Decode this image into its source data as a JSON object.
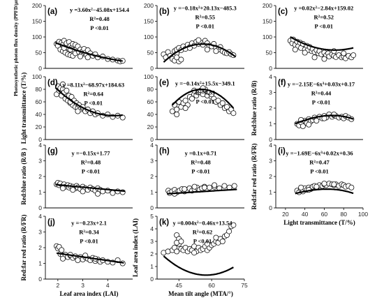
{
  "chart_data": [
    {
      "id": "a",
      "type": "scatter",
      "panel_label": "(a)",
      "equation": "y =3.60x²−45.08x+154.4",
      "r2": "R²=0.48",
      "p": "P <0.01",
      "xlim": [
        1.5,
        5
      ],
      "ylim": [
        0,
        200
      ],
      "x_ticks": [],
      "y_ticks": [
        0,
        50,
        100,
        150,
        200
      ],
      "ylabel": "Photosynthetic photon flux density (PPFD/μmolm⁻²s⁻¹)",
      "xlabel": "",
      "fit": {
        "kind": "poly",
        "coef": [
          154.4,
          -45.08,
          3.6
        ],
        "x_range": [
          1.9,
          4.6
        ]
      },
      "x": [
        1.95,
        2.0,
        2.05,
        2.1,
        2.15,
        2.2,
        2.2,
        2.25,
        2.3,
        2.3,
        2.35,
        2.4,
        2.4,
        2.45,
        2.5,
        2.5,
        2.55,
        2.6,
        2.6,
        2.65,
        2.7,
        2.7,
        2.75,
        2.8,
        2.85,
        2.9,
        2.95,
        3.0,
        3.05,
        3.1,
        3.15,
        3.2,
        3.3,
        3.4,
        3.5,
        3.6,
        3.8,
        4.0,
        4.2,
        4.4,
        4.5,
        4.6,
        2.25,
        2.5,
        2.9,
        3.2
      ],
      "y": [
        78,
        72,
        85,
        60,
        82,
        75,
        55,
        88,
        70,
        50,
        80,
        66,
        45,
        84,
        72,
        42,
        65,
        78,
        40,
        58,
        75,
        48,
        62,
        70,
        52,
        60,
        45,
        55,
        62,
        50,
        42,
        58,
        48,
        40,
        45,
        35,
        38,
        30,
        28,
        25,
        22,
        24,
        65,
        60,
        38,
        35
      ]
    },
    {
      "id": "b",
      "type": "scatter",
      "panel_label": "(b)",
      "equation": "y =−0.18x²+20.13x−485.3",
      "r2": "R²=0.55",
      "p": "P <0.01",
      "xlim": [
        35,
        75
      ],
      "ylim": [
        0,
        200
      ],
      "x_ticks": [],
      "y_ticks": [
        0,
        50,
        100,
        150,
        200
      ],
      "ylabel": "",
      "xlabel": "",
      "fit": {
        "kind": "poly",
        "coef": [
          -485.3,
          20.13,
          -0.18
        ],
        "x_range": [
          38,
          71
        ]
      },
      "x": [
        38,
        39,
        40,
        41,
        42,
        43,
        43,
        44,
        44,
        45,
        45,
        46,
        47,
        48,
        49,
        50,
        51,
        52,
        53,
        54,
        55,
        56,
        57,
        58,
        59,
        60,
        61,
        62,
        63,
        64,
        65,
        66,
        67,
        68,
        69,
        70,
        44,
        46,
        50,
        54,
        58,
        62
      ],
      "y": [
        45,
        35,
        52,
        40,
        30,
        55,
        25,
        48,
        60,
        22,
        65,
        58,
        70,
        62,
        75,
        68,
        80,
        72,
        85,
        78,
        82,
        75,
        88,
        80,
        72,
        70,
        78,
        65,
        60,
        68,
        55,
        50,
        48,
        52,
        45,
        42,
        35,
        28,
        65,
        90,
        60,
        55
      ]
    },
    {
      "id": "c",
      "type": "scatter",
      "panel_label": "(c)",
      "equation": "y =0.02x²−2.84x+159.02",
      "r2": "R²=0.52",
      "p": "P <0.01",
      "xlim": [
        10,
        100
      ],
      "ylim": [
        0,
        200
      ],
      "x_ticks": [],
      "y_ticks": [
        0,
        50,
        100,
        150,
        200
      ],
      "ylabel": "",
      "xlabel": "",
      "fit": {
        "kind": "poly",
        "coef": [
          159.02,
          -2.84,
          0.02
        ],
        "x_range": [
          25,
          90
        ]
      },
      "x": [
        25,
        27,
        28,
        30,
        32,
        33,
        35,
        36,
        38,
        40,
        42,
        43,
        45,
        47,
        48,
        50,
        52,
        54,
        55,
        57,
        60,
        62,
        64,
        65,
        68,
        70,
        72,
        75,
        78,
        80,
        82,
        85,
        88,
        90,
        30,
        40,
        50,
        60,
        70,
        80
      ],
      "y": [
        88,
        80,
        92,
        75,
        85,
        70,
        82,
        65,
        78,
        60,
        72,
        58,
        68,
        55,
        62,
        52,
        58,
        48,
        55,
        45,
        50,
        42,
        48,
        38,
        45,
        40,
        36,
        42,
        35,
        38,
        32,
        40,
        35,
        42,
        60,
        50,
        35,
        30,
        55,
        48
      ]
    },
    {
      "id": "d",
      "type": "scatter",
      "panel_label": "(d)",
      "equation": "y =8.11x²−68.97x+184.63",
      "r2": "R²=0.64",
      "p": "P <0.01",
      "xlim": [
        1.5,
        5
      ],
      "ylim": [
        0,
        100
      ],
      "x_ticks": [],
      "y_ticks": [
        0,
        20,
        40,
        60,
        80,
        100
      ],
      "ylabel": "Light transmittance (T/%)",
      "xlabel": "",
      "fit": {
        "kind": "poly",
        "coef": [
          184.63,
          -68.97,
          8.11
        ],
        "x_range": [
          1.9,
          4.6
        ]
      },
      "x": [
        1.95,
        2.0,
        2.05,
        2.1,
        2.15,
        2.2,
        2.25,
        2.3,
        2.35,
        2.4,
        2.45,
        2.5,
        2.55,
        2.6,
        2.65,
        2.7,
        2.75,
        2.8,
        2.85,
        2.9,
        3.0,
        3.1,
        3.2,
        3.3,
        3.4,
        3.5,
        3.6,
        3.8,
        4.0,
        4.2,
        4.4,
        4.6,
        2.2,
        2.5,
        2.8,
        3.0
      ],
      "y": [
        72,
        85,
        78,
        82,
        70,
        80,
        75,
        65,
        78,
        62,
        70,
        58,
        68,
        55,
        62,
        52,
        58,
        50,
        55,
        48,
        50,
        45,
        48,
        42,
        45,
        40,
        42,
        38,
        40,
        36,
        38,
        35,
        88,
        60,
        45,
        52
      ]
    },
    {
      "id": "e",
      "type": "scatter",
      "panel_label": "(e)",
      "equation": "y =−0.14x²+15.5x−349.1",
      "r2": "R²=0.59",
      "p": "P <0.01",
      "xlim": [
        35,
        75
      ],
      "ylim": [
        0,
        100
      ],
      "x_ticks": [],
      "y_ticks": [
        0,
        20,
        40,
        60,
        80,
        100
      ],
      "ylabel": "",
      "xlabel": "",
      "fit": {
        "kind": "poly",
        "coef": [
          -349.1,
          15.5,
          -0.14
        ],
        "x_range": [
          42,
          70
        ]
      },
      "x": [
        42,
        43,
        44,
        45,
        46,
        47,
        48,
        49,
        50,
        51,
        52,
        53,
        54,
        55,
        56,
        57,
        58,
        59,
        60,
        61,
        62,
        63,
        64,
        65,
        66,
        67,
        68,
        69,
        70,
        44,
        48,
        52,
        56,
        60
      ],
      "y": [
        45,
        55,
        48,
        60,
        52,
        58,
        62,
        55,
        68,
        65,
        72,
        70,
        75,
        78,
        72,
        80,
        70,
        75,
        68,
        65,
        60,
        62,
        55,
        58,
        50,
        52,
        45,
        48,
        42,
        40,
        50,
        78,
        82,
        72
      ]
    },
    {
      "id": "f",
      "type": "scatter",
      "panel_label": "(f)",
      "equation": "y =−2.15E−6x³+0.03x+0.17",
      "r2": "R²=0.44",
      "p": "P <0.01",
      "xlim": [
        10,
        100
      ],
      "ylim": [
        0,
        4
      ],
      "x_ticks": [],
      "y_ticks": [
        0,
        1,
        2,
        3,
        4
      ],
      "ylabel": "Red:blue ratio (R/B)",
      "xlabel": "",
      "fit": {
        "kind": "poly",
        "coef": [
          0.17,
          0.03,
          0,
          -2.15e-06
        ],
        "x_range": [
          30,
          90
        ]
      },
      "x": [
        32,
        34,
        36,
        38,
        40,
        42,
        44,
        46,
        48,
        50,
        52,
        55,
        58,
        60,
        62,
        65,
        68,
        70,
        72,
        75,
        78,
        80,
        82,
        85,
        88,
        36,
        44,
        52,
        60,
        70
      ],
      "y": [
        1.0,
        0.9,
        1.1,
        0.85,
        1.2,
        1.05,
        1.3,
        1.15,
        1.25,
        1.4,
        1.3,
        1.45,
        1.35,
        1.5,
        1.4,
        1.6,
        1.45,
        1.55,
        1.5,
        1.4,
        1.45,
        1.35,
        1.5,
        1.4,
        1.3,
        1.25,
        0.95,
        1.2,
        1.35,
        1.6
      ]
    },
    {
      "id": "g",
      "type": "scatter",
      "panel_label": "(g)",
      "equation": "y =−0.15x+1.77",
      "r2": "R²=0.48",
      "p": "P <0.01",
      "xlim": [
        1.5,
        5
      ],
      "ylim": [
        0,
        4
      ],
      "x_ticks": [],
      "y_ticks": [
        0,
        1,
        2,
        3,
        4
      ],
      "ylabel": "Red:blue ratio (R/B )",
      "xlabel": "",
      "fit": {
        "kind": "poly",
        "coef": [
          1.77,
          -0.15
        ],
        "x_range": [
          1.9,
          4.7
        ]
      },
      "x": [
        1.95,
        2.0,
        2.05,
        2.1,
        2.2,
        2.25,
        2.3,
        2.4,
        2.45,
        2.5,
        2.6,
        2.7,
        2.75,
        2.8,
        2.9,
        3.0,
        3.1,
        3.2,
        3.3,
        3.4,
        3.5,
        3.6,
        3.7,
        3.8,
        4.0,
        4.2,
        4.4,
        4.6,
        2.2,
        2.6,
        3.0,
        3.6
      ],
      "y": [
        1.5,
        1.6,
        1.45,
        1.55,
        1.4,
        1.5,
        1.35,
        1.45,
        1.3,
        1.4,
        1.35,
        1.25,
        1.4,
        1.3,
        1.2,
        1.35,
        1.25,
        1.15,
        1.3,
        1.2,
        1.1,
        1.25,
        1.15,
        1.05,
        1.1,
        0.95,
        1.05,
        1.0,
        1.25,
        1.15,
        1.05,
        0.9
      ]
    },
    {
      "id": "h",
      "type": "scatter",
      "panel_label": "(h)",
      "equation": "y =0.1x+0.71",
      "r2": "R²=0.48",
      "p": "P <0.01",
      "xlim": [
        1.5,
        5
      ],
      "ylim": [
        0,
        4
      ],
      "x_ticks": [],
      "y_ticks": [
        0,
        1,
        2,
        3,
        4
      ],
      "ylabel": "",
      "xlabel": "",
      "fit": {
        "kind": "poly",
        "coef": [
          0.71,
          0.1
        ],
        "x_range": [
          1.9,
          4.7
        ]
      },
      "x": [
        1.95,
        2.0,
        2.1,
        2.2,
        2.3,
        2.4,
        2.5,
        2.6,
        2.7,
        2.8,
        2.9,
        3.0,
        3.1,
        3.2,
        3.3,
        3.4,
        3.5,
        3.6,
        3.8,
        4.0,
        4.2,
        4.4,
        4.6,
        2.2,
        2.6,
        3.0,
        3.4,
        3.8
      ],
      "y": [
        1.1,
        0.95,
        1.05,
        1.15,
        1.0,
        1.1,
        1.2,
        1.05,
        1.15,
        1.25,
        1.1,
        1.2,
        1.3,
        1.15,
        1.25,
        1.35,
        1.2,
        1.3,
        1.35,
        1.25,
        1.4,
        1.3,
        1.4,
        0.9,
        1.2,
        1.35,
        1.3,
        1.45
      ]
    },
    {
      "id": "i",
      "type": "scatter",
      "panel_label": "(i)",
      "equation": "y =−1.69E−6x³+0.02x+0.36",
      "r2": "R²=0.47",
      "p": "P <0.01",
      "xlim": [
        10,
        100
      ],
      "ylim": [
        0,
        4
      ],
      "x_ticks": [
        20,
        40,
        60,
        80,
        100
      ],
      "y_ticks": [
        0,
        1,
        2,
        3,
        4
      ],
      "ylabel": "Red:far red ratio (R/FR)",
      "xlabel": "Light transmittance (T/%)",
      "fit": {
        "kind": "poly",
        "coef": [
          0.36,
          0.02,
          0,
          -1.69e-06
        ],
        "x_range": [
          30,
          90
        ]
      },
      "x": [
        32,
        34,
        36,
        38,
        40,
        42,
        44,
        46,
        48,
        50,
        52,
        55,
        58,
        60,
        62,
        65,
        68,
        70,
        72,
        75,
        78,
        80,
        82,
        85,
        88,
        36,
        44,
        52,
        60,
        70
      ],
      "y": [
        1.1,
        1.0,
        1.2,
        1.05,
        1.25,
        1.15,
        1.3,
        1.2,
        1.35,
        1.4,
        1.3,
        1.45,
        1.4,
        1.5,
        1.45,
        1.55,
        1.5,
        1.45,
        1.5,
        1.4,
        1.5,
        1.45,
        1.35,
        1.4,
        1.3,
        1.3,
        1.15,
        1.35,
        1.55,
        1.5
      ]
    },
    {
      "id": "j",
      "type": "scatter",
      "panel_label": "(j)",
      "equation": "y =−0.23x+2.1",
      "r2": "R²=0.34",
      "p": "P <0.01",
      "xlim": [
        1.5,
        5
      ],
      "ylim": [
        0,
        4
      ],
      "x_ticks": [
        2,
        3,
        4
      ],
      "y_ticks": [
        0,
        1,
        2,
        3,
        4
      ],
      "ylabel": "Red:far red ratio (R/FR)",
      "xlabel": "Leaf area index (LAI)",
      "fit": {
        "kind": "poly",
        "coef": [
          2.1,
          -0.23
        ],
        "x_range": [
          1.95,
          4.65
        ]
      },
      "x": [
        1.95,
        2.0,
        2.05,
        2.1,
        2.15,
        2.2,
        2.3,
        2.4,
        2.5,
        2.6,
        2.7,
        2.8,
        2.9,
        3.0,
        3.1,
        3.2,
        3.3,
        3.4,
        3.5,
        3.6,
        3.7,
        3.8,
        4.0,
        4.2,
        4.4,
        4.6,
        2.2,
        2.5,
        2.8,
        3.1,
        3.5
      ],
      "y": [
        2.1,
        1.95,
        2.05,
        1.6,
        1.85,
        1.5,
        1.55,
        1.4,
        1.5,
        1.35,
        1.45,
        1.3,
        1.4,
        1.25,
        1.4,
        1.3,
        1.2,
        1.35,
        1.15,
        1.25,
        1.1,
        1.2,
        1.1,
        1.05,
        1.2,
        1.0,
        1.3,
        1.55,
        1.2,
        1.5,
        1.3
      ]
    },
    {
      "id": "k",
      "type": "scatter",
      "panel_label": "(k)",
      "equation": "y =0.004x²−0.46x+13.54",
      "r2": "R²=0.62",
      "p": "P <0.01",
      "xlim": [
        35,
        75
      ],
      "ylim": [
        0,
        5
      ],
      "x_ticks": [
        45,
        60,
        75
      ],
      "y_ticks": [
        0,
        1,
        2,
        3,
        4,
        5
      ],
      "ylabel": "Leaf area index (LAI)",
      "xlabel": "Mean tilt angle (MTA/°)",
      "fit": {
        "kind": "poly",
        "coef": [
          13.54,
          -0.46,
          0.004
        ],
        "x_range": [
          38,
          70
        ]
      },
      "x": [
        38,
        40,
        42,
        43,
        44,
        44,
        45,
        45,
        46,
        47,
        48,
        49,
        50,
        51,
        52,
        53,
        54,
        55,
        56,
        57,
        58,
        59,
        60,
        61,
        62,
        63,
        64,
        65,
        66,
        67,
        68,
        69,
        70,
        44,
        46,
        52,
        58,
        62
      ],
      "y": [
        2.1,
        2.2,
        2.3,
        2.5,
        3.5,
        2.2,
        2.8,
        3.2,
        2.4,
        2.3,
        2.5,
        2.2,
        2.4,
        2.3,
        2.6,
        2.2,
        2.5,
        2.3,
        2.4,
        2.6,
        2.3,
        2.5,
        2.7,
        2.8,
        3.0,
        2.9,
        3.2,
        3.0,
        3.4,
        3.5,
        3.8,
        4.2,
        4.3,
        2.9,
        3.0,
        2.1,
        2.8,
        3.3
      ]
    }
  ]
}
